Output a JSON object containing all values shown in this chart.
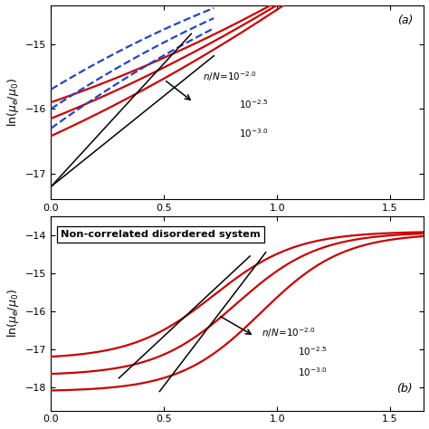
{
  "fig_width": 4.74,
  "fig_height": 4.74,
  "dpi": 100,
  "colors": {
    "red": "#CC0000",
    "blue_dashed": "#2244CC",
    "black": "#000000",
    "background": "#ffffff"
  },
  "subplot_a": {
    "label": "(a)",
    "xlim": [
      0.0,
      1.65
    ],
    "ylim": [
      -17.4,
      -14.4
    ],
    "xticks": [
      0.0,
      0.5,
      1.0,
      1.5
    ],
    "yticks": [
      -17,
      -16,
      -15
    ],
    "ylabel": "ln(μ_e/μ_0)"
  },
  "subplot_b": {
    "label": "(b)",
    "xlim": [
      0.0,
      1.65
    ],
    "ylim": [
      -18.6,
      -13.5
    ],
    "xticks": [
      0.0,
      0.5,
      1.0,
      1.5
    ],
    "yticks": [
      -18,
      -17,
      -16,
      -15,
      -14
    ],
    "ylabel": "ln(μ_e/μ_0)",
    "box_text": "Non-correlated disordered system"
  }
}
